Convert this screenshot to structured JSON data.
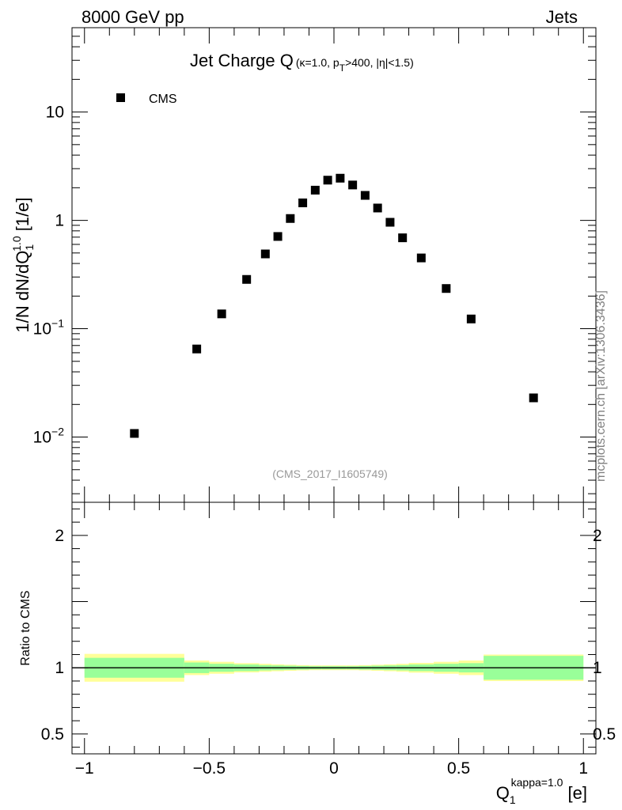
{
  "header": {
    "left": "8000 GeV pp",
    "right": "Jets"
  },
  "watermark": "mcplots.cern.ch [arXiv:1306.3436]",
  "chart_data": [
    {
      "type": "scatter",
      "title_main": "Jet Charge Q",
      "title_sub": {
        "part1": "(κ=1.0, p",
        "sub": "T",
        "part2": ">400, |η|<1.5)"
      },
      "ylabel": {
        "main": "1/N dN/dQ",
        "sub": "1",
        "sup": "1.0",
        "unit": " [1/e]"
      },
      "yscale": "log",
      "xlim": [
        -1.05,
        1.05
      ],
      "ylim": [
        0.0025,
        60
      ],
      "y_ticks": [
        {
          "v": 0.01,
          "base": "10",
          "exp": "−2"
        },
        {
          "v": 0.1,
          "base": "10",
          "exp": "−1"
        },
        {
          "v": 1,
          "label": "1"
        },
        {
          "v": 10,
          "label": "10"
        }
      ],
      "legend": {
        "entry": "CMS",
        "position": "top-left"
      },
      "reference": "(CMS_2017_I1605749)",
      "series": [
        {
          "name": "CMS",
          "color": "#000000",
          "marker": "square",
          "x": [
            -0.8,
            -0.55,
            -0.45,
            -0.35,
            -0.275,
            -0.225,
            -0.175,
            -0.125,
            -0.075,
            -0.025,
            0.025,
            0.075,
            0.125,
            0.175,
            0.225,
            0.275,
            0.35,
            0.45,
            0.55,
            0.8
          ],
          "y": [
            0.0108,
            0.065,
            0.137,
            0.285,
            0.49,
            0.71,
            1.04,
            1.45,
            1.9,
            2.35,
            2.45,
            2.12,
            1.7,
            1.3,
            0.96,
            0.69,
            0.45,
            0.235,
            0.123,
            0.023
          ]
        }
      ]
    },
    {
      "type": "area",
      "ylabel": "Ratio to CMS",
      "xlabel": {
        "main": "Q",
        "sub": "1",
        "sup": "kappa=1.0",
        "unit": " [e]"
      },
      "xlim": [
        -1.05,
        1.05
      ],
      "ylim": [
        0.35,
        2.25
      ],
      "x_ticks": [
        {
          "v": -1,
          "label": "−1"
        },
        {
          "v": -0.5,
          "label": "−0.5"
        },
        {
          "v": 0,
          "label": "0"
        },
        {
          "v": 0.5,
          "label": "0.5"
        },
        {
          "v": 1,
          "label": "1"
        }
      ],
      "y_ticks": [
        {
          "v": 0.5,
          "label": "0.5"
        },
        {
          "v": 1,
          "label": "1"
        },
        {
          "v": 2,
          "label": "2"
        }
      ],
      "reference_line": 1,
      "bands": {
        "bins": [
          [
            -1,
            -0.6
          ],
          [
            -0.6,
            -0.5
          ],
          [
            -0.5,
            -0.4
          ],
          [
            -0.4,
            -0.3
          ],
          [
            -0.3,
            -0.25
          ],
          [
            -0.25,
            -0.2
          ],
          [
            -0.2,
            -0.15
          ],
          [
            -0.15,
            -0.1
          ],
          [
            -0.1,
            -0.05
          ],
          [
            -0.05,
            0
          ],
          [
            0,
            0.05
          ],
          [
            0.05,
            0.1
          ],
          [
            0.1,
            0.15
          ],
          [
            0.15,
            0.2
          ],
          [
            0.2,
            0.25
          ],
          [
            0.25,
            0.3
          ],
          [
            0.3,
            0.4
          ],
          [
            0.4,
            0.5
          ],
          [
            0.5,
            0.6
          ],
          [
            0.6,
            1
          ]
        ],
        "inner": [
          0.075,
          0.04,
          0.03,
          0.025,
          0.02,
          0.018,
          0.016,
          0.014,
          0.012,
          0.012,
          0.012,
          0.012,
          0.014,
          0.016,
          0.018,
          0.02,
          0.025,
          0.03,
          0.035,
          0.09
        ],
        "outer": [
          0.105,
          0.055,
          0.045,
          0.035,
          0.03,
          0.026,
          0.023,
          0.02,
          0.018,
          0.018,
          0.018,
          0.018,
          0.02,
          0.023,
          0.026,
          0.03,
          0.037,
          0.045,
          0.055,
          0.1
        ],
        "inner_color": "#99ff99",
        "outer_color": "#ffff99"
      }
    }
  ]
}
